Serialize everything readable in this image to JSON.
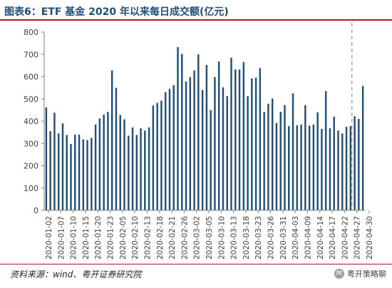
{
  "header": {
    "title": "图表6：ETF 基金 2020 年以来每日成交额(亿元)"
  },
  "footer": {
    "source": "资料来源：wind、粤开证券研究院",
    "watermark": "粤开策略聊"
  },
  "colors": {
    "bar": "#1f4e79",
    "title": "#1f4e79",
    "rule": "#b11c2b",
    "dashed_line": "#8c96a3",
    "axis_text": "#404040"
  },
  "chart_data": {
    "type": "bar",
    "title": "ETF 基金 2020 年以来每日成交额(亿元)",
    "ylabel": "",
    "xlabel": "",
    "ylim": [
      0,
      800
    ],
    "yticks": [
      0,
      100,
      200,
      300,
      400,
      500,
      600,
      700,
      800
    ],
    "grid": false,
    "legend": "none",
    "x_tick_labels": [
      "2020-01-02",
      "2020-01-07",
      "2020-01-10",
      "2020-01-15",
      "2020-01-20",
      "2020-01-23",
      "2020-02-05",
      "2020-02-10",
      "2020-02-13",
      "2020-02-18",
      "2020-02-21",
      "2020-02-26",
      "2020-03-02",
      "2020-03-05",
      "2020-03-10",
      "2020-03-13",
      "2020-03-18",
      "2020-03-23",
      "2020-03-26",
      "2020-03-31",
      "2020-04-03",
      "2020-04-09",
      "2020-04-14",
      "2020-04-17",
      "2020-04-22",
      "2020-04-27",
      "2020-04-30"
    ],
    "reference_line": {
      "position": "between 2020-04-22 and 2020-04-27",
      "style": "dashed"
    },
    "values": [
      462,
      355,
      438,
      345,
      390,
      338,
      298,
      340,
      340,
      318,
      315,
      325,
      385,
      412,
      430,
      442,
      628,
      550,
      428,
      408,
      335,
      372,
      338,
      368,
      358,
      372,
      470,
      482,
      492,
      530,
      545,
      562,
      733,
      702,
      578,
      598,
      628,
      700,
      540,
      652,
      450,
      598,
      668,
      552,
      512,
      685,
      632,
      632,
      665,
      512,
      592,
      595,
      638,
      442,
      478,
      502,
      392,
      442,
      472,
      378,
      525,
      382,
      385,
      472,
      380,
      385,
      440,
      365,
      535,
      368,
      420,
      358,
      345,
      375,
      378,
      422,
      410,
      558
    ]
  }
}
